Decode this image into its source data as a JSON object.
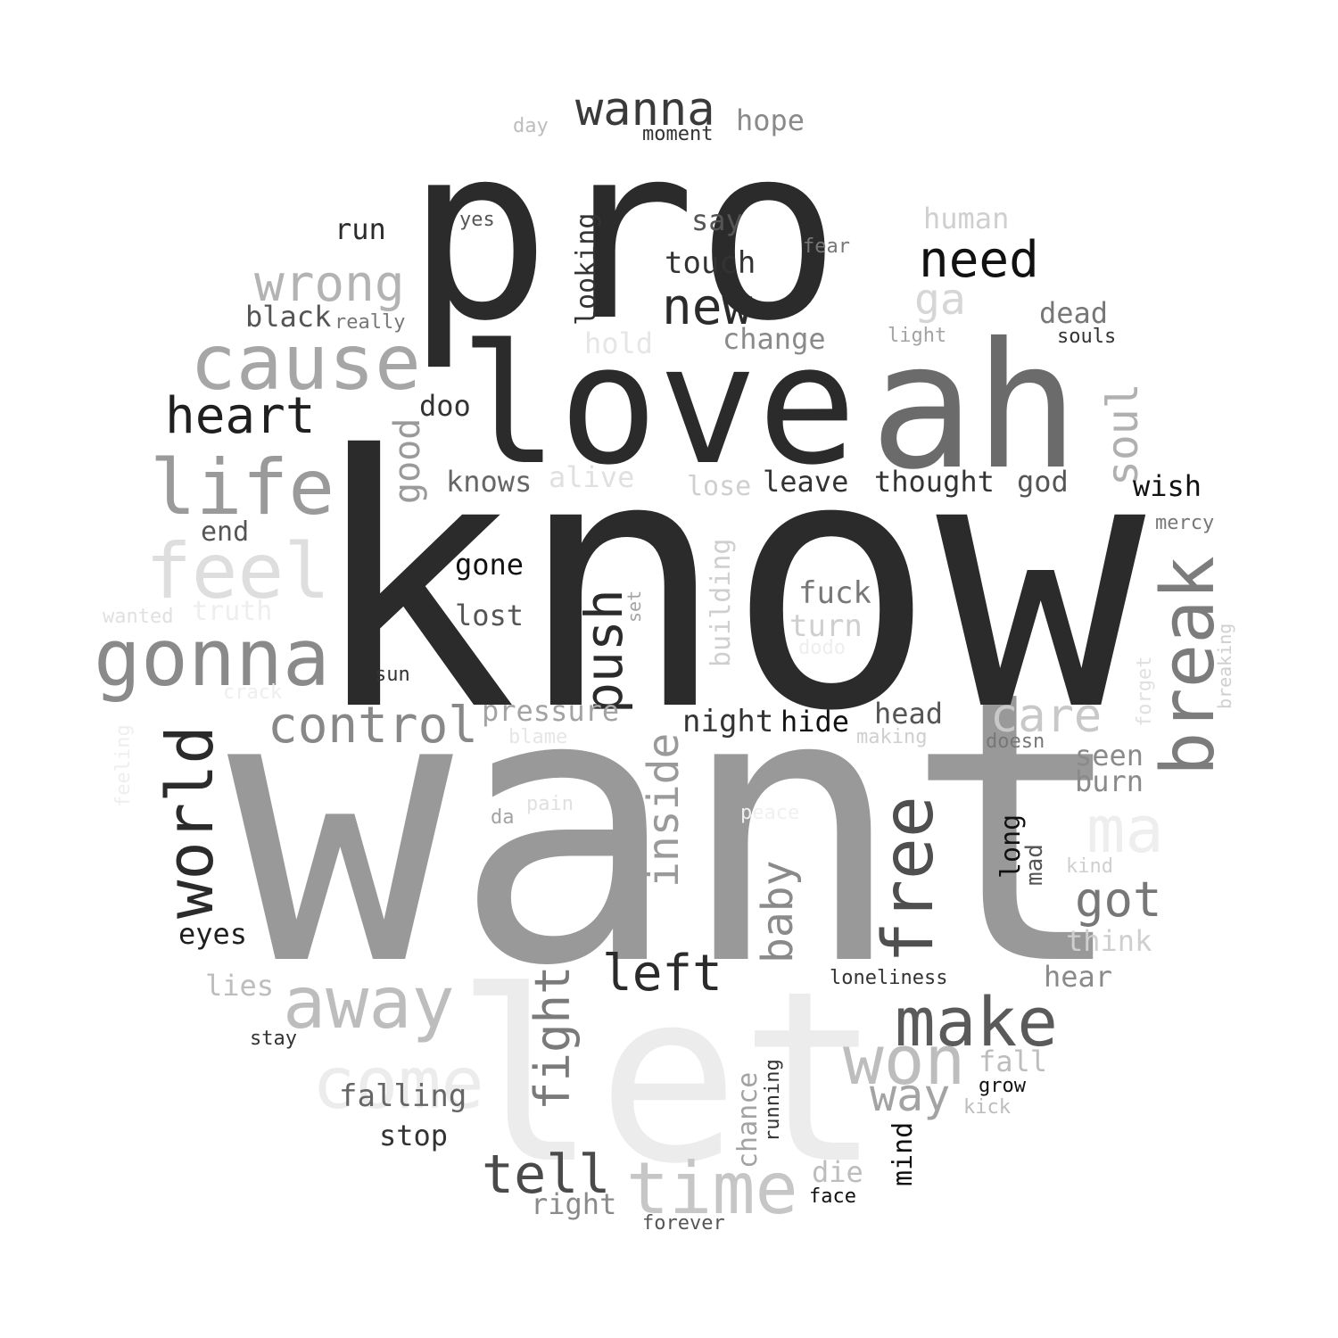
{
  "words": [
    {
      "text": "want",
      "color": "#999999"
    },
    {
      "text": "know",
      "color": "#2b2b2b"
    },
    {
      "text": "pro",
      "color": "#2b2b2b"
    },
    {
      "text": "let",
      "color": "#ececec"
    },
    {
      "text": "love",
      "color": "#2b2b2b"
    },
    {
      "text": "ah",
      "color": "#6b6b6b"
    },
    {
      "text": "gonna",
      "color": "#8a8a8a"
    },
    {
      "text": "cause",
      "color": "#a6a6a6"
    },
    {
      "text": "life",
      "color": "#9a9a9a"
    },
    {
      "text": "feel",
      "color": "#dedede"
    },
    {
      "text": "world",
      "color": "#2b2b2b"
    },
    {
      "text": "break",
      "color": "#7c7c7c"
    },
    {
      "text": "free",
      "color": "#4f4f4f"
    },
    {
      "text": "time",
      "color": "#c6c6c6"
    },
    {
      "text": "away",
      "color": "#bdbdbd"
    },
    {
      "text": "come",
      "color": "#ececec"
    },
    {
      "text": "make",
      "color": "#5a5a5a"
    },
    {
      "text": "won",
      "color": "#bdbdbd"
    },
    {
      "text": "control",
      "color": "#888888"
    },
    {
      "text": "heart",
      "color": "#1f1f1f"
    },
    {
      "text": "need",
      "color": "#111111"
    },
    {
      "text": "new",
      "color": "#2b2b2b"
    },
    {
      "text": "wrong",
      "color": "#b3b3b3"
    },
    {
      "text": "wanna",
      "color": "#3a3a3a"
    },
    {
      "text": "tell",
      "color": "#4a4a4a"
    },
    {
      "text": "left",
      "color": "#2b2b2b"
    },
    {
      "text": "push",
      "color": "#2b2b2b"
    },
    {
      "text": "fight",
      "color": "#7a7a7a"
    },
    {
      "text": "ma",
      "color": "#eeeeee"
    },
    {
      "text": "got",
      "color": "#777777"
    },
    {
      "text": "care",
      "color": "#c8c8c8"
    },
    {
      "text": "way",
      "color": "#a3a3a3"
    },
    {
      "text": "soul",
      "color": "#b0b0b0"
    },
    {
      "text": "baby",
      "color": "#8a8a8a"
    },
    {
      "text": "inside",
      "color": "#9a9a9a"
    },
    {
      "text": "good",
      "color": "#9a9a9a"
    },
    {
      "text": "ga",
      "color": "#d6d6d6"
    },
    {
      "text": "falling",
      "color": "#666666"
    },
    {
      "text": "eyes",
      "color": "#1f1f1f"
    },
    {
      "text": "touch",
      "color": "#333333"
    },
    {
      "text": "say",
      "color": "#555555"
    },
    {
      "text": "hope",
      "color": "#8a8a8a"
    },
    {
      "text": "run",
      "color": "#2b2b2b"
    },
    {
      "text": "black",
      "color": "#555555"
    },
    {
      "text": "human",
      "color": "#cfcfcf"
    },
    {
      "text": "dead",
      "color": "#777777"
    },
    {
      "text": "change",
      "color": "#8a8a8a"
    },
    {
      "text": "hold",
      "color": "#e6e6e6"
    },
    {
      "text": "doo",
      "color": "#333333"
    },
    {
      "text": "knows",
      "color": "#666666"
    },
    {
      "text": "alive",
      "color": "#e0e0e0"
    },
    {
      "text": "lose",
      "color": "#cfcfcf"
    },
    {
      "text": "leave",
      "color": "#333333"
    },
    {
      "text": "thought",
      "color": "#333333"
    },
    {
      "text": "god",
      "color": "#555555"
    },
    {
      "text": "wish",
      "color": "#111111"
    },
    {
      "text": "end",
      "color": "#555555"
    },
    {
      "text": "gone",
      "color": "#111111"
    },
    {
      "text": "lost",
      "color": "#555555"
    },
    {
      "text": "fuck",
      "color": "#777777"
    },
    {
      "text": "turn",
      "color": "#cfcfcf"
    },
    {
      "text": "building",
      "color": "#cfcfcf"
    },
    {
      "text": "pressure",
      "color": "#a3a3a3"
    },
    {
      "text": "night",
      "color": "#333333"
    },
    {
      "text": "hide",
      "color": "#111111"
    },
    {
      "text": "head",
      "color": "#555555"
    },
    {
      "text": "seen",
      "color": "#8a8a8a"
    },
    {
      "text": "burn",
      "color": "#8a8a8a"
    },
    {
      "text": "think",
      "color": "#cfcfcf"
    },
    {
      "text": "hear",
      "color": "#8a8a8a"
    },
    {
      "text": "lies",
      "color": "#bdbdbd"
    },
    {
      "text": "stop",
      "color": "#333333"
    },
    {
      "text": "right",
      "color": "#8a8a8a"
    },
    {
      "text": "fall",
      "color": "#bdbdbd"
    },
    {
      "text": "chance",
      "color": "#a3a3a3"
    },
    {
      "text": "mind",
      "color": "#111111"
    },
    {
      "text": "die",
      "color": "#bdbdbd"
    },
    {
      "text": "long",
      "color": "#111111"
    },
    {
      "text": "mad",
      "color": "#555555"
    },
    {
      "text": "truth",
      "color": "#eeeeee"
    },
    {
      "text": "moment",
      "color": "#333333"
    },
    {
      "text": "day",
      "color": "#bdbdbd"
    },
    {
      "text": "yes",
      "color": "#555555"
    },
    {
      "text": "fear",
      "color": "#777777"
    },
    {
      "text": "really",
      "color": "#777777"
    },
    {
      "text": "light",
      "color": "#a3a3a3"
    },
    {
      "text": "souls",
      "color": "#333333"
    },
    {
      "text": "looking",
      "color": "#333333"
    },
    {
      "text": "mercy",
      "color": "#777777"
    },
    {
      "text": "wanted",
      "color": "#e0e0e0"
    },
    {
      "text": "set",
      "color": "#a3a3a3"
    },
    {
      "text": "breaking",
      "color": "#cfcfcf"
    },
    {
      "text": "forget",
      "color": "#e0e0e0"
    },
    {
      "text": "sun",
      "color": "#333333"
    },
    {
      "text": "crack",
      "color": "#eeeeee"
    },
    {
      "text": "dodo",
      "color": "#eeeeee"
    },
    {
      "text": "blame",
      "color": "#e6e6e6"
    },
    {
      "text": "making",
      "color": "#cfcfcf"
    },
    {
      "text": "doesn",
      "color": "#777777"
    },
    {
      "text": "feeling",
      "color": "#eeeeee"
    },
    {
      "text": "da",
      "color": "#a3a3a3"
    },
    {
      "text": "pain",
      "color": "#e0e0e0"
    },
    {
      "text": "peace",
      "color": "#f0f0f0"
    },
    {
      "text": "kind",
      "color": "#cfcfcf"
    },
    {
      "text": "loneliness",
      "color": "#333333"
    },
    {
      "text": "stay",
      "color": "#333333"
    },
    {
      "text": "grow",
      "color": "#111111"
    },
    {
      "text": "kick",
      "color": "#bdbdbd"
    },
    {
      "text": "running",
      "color": "#333333"
    },
    {
      "text": "face",
      "color": "#111111"
    },
    {
      "text": "forever",
      "color": "#555555"
    }
  ]
}
